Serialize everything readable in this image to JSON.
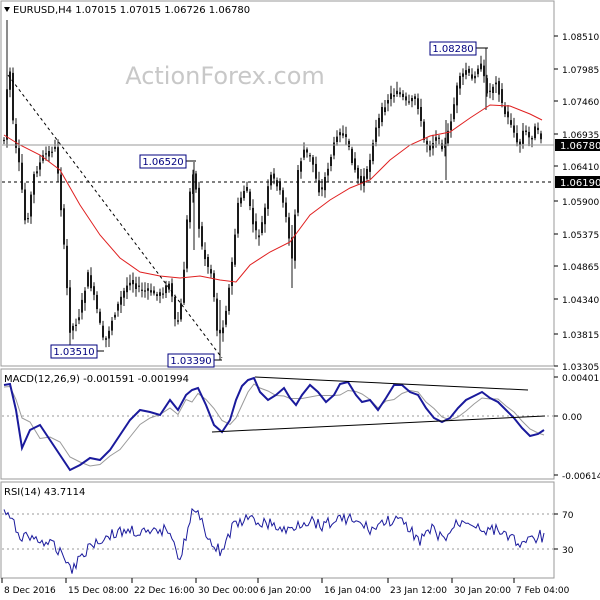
{
  "header": {
    "symbol_timeframe": "EURUSD,H4",
    "ohlc": "1.07015 1.07015 1.06726 1.06780"
  },
  "watermark": "ActionForex.com",
  "chart_data": [
    {
      "type": "candlestick",
      "title": "EURUSD,H4 1.07015 1.07015 1.06726 1.06780",
      "ylim": [
        1.0325,
        1.088
      ],
      "y_ticks": [
        "1.08510",
        "1.07985",
        "1.07460",
        "1.06935",
        "1.06410",
        "1.05900",
        "1.05375",
        "1.04865",
        "1.04340",
        "1.03815",
        "1.03305"
      ],
      "current_price": "1.06780",
      "level_line": "1.06190",
      "swing_labels": [
        "1.08280",
        "1.06520",
        "1.03510",
        "1.03390"
      ],
      "ma_color": "#e02020",
      "candle_color": "#1a1a1a",
      "grid": false
    },
    {
      "type": "line",
      "title": "MACD(12,26,9) -0.001591 -0.001994",
      "y_ticks": [
        "0.004011",
        "0.00",
        "-0.006143"
      ],
      "series_colors": [
        "#1a1a9c",
        "#9a9a9a"
      ],
      "grid": false
    },
    {
      "type": "line",
      "title": "RSI(14) 43.7114",
      "ylim": [
        0,
        100
      ],
      "y_ticks": [
        "70",
        "30"
      ],
      "series_colors": [
        "#1a1a9c"
      ],
      "grid": false
    }
  ],
  "x_labels": [
    "8 Dec 2016",
    "15 Dec 08:00",
    "22 Dec 16:00",
    "30 Dec 00:00",
    "6 Jan 20:00",
    "16 Jan 04:00",
    "23 Jan 12:00",
    "30 Jan 20:00",
    "7 Feb 04:00"
  ]
}
